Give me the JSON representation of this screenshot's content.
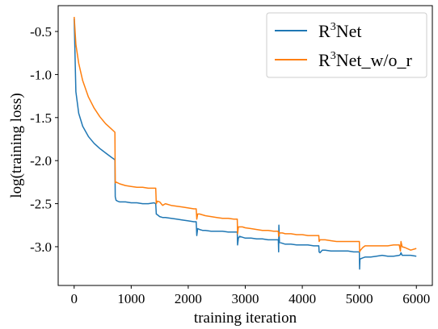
{
  "chart_data": {
    "type": "line",
    "title": "",
    "xlabel": "training iteration",
    "ylabel": "log(training loss)",
    "xlim": [
      -280,
      6280
    ],
    "ylim": [
      -3.45,
      -0.2
    ],
    "xticks": [
      0,
      1000,
      2000,
      3000,
      4000,
      5000,
      6000
    ],
    "xtick_labels": [
      "0",
      "1000",
      "2000",
      "3000",
      "4000",
      "5000",
      "6000"
    ],
    "yticks": [
      -0.5,
      -1.0,
      -1.5,
      -2.0,
      -2.5,
      -3.0
    ],
    "ytick_labels": [
      "-0.5",
      "-1.0",
      "-1.5",
      "-2.0",
      "-2.5",
      "-3.0"
    ],
    "grid": false,
    "legend_position": "top-right",
    "series": [
      {
        "name": "R³Net",
        "legend_base": "R",
        "legend_sup": "3",
        "legend_rest": "Net",
        "color": "#1f77b4",
        "x": [
          0,
          30,
          80,
          150,
          250,
          350,
          450,
          550,
          650,
          715,
          720,
          735,
          760,
          800,
          900,
          1000,
          1100,
          1200,
          1300,
          1400,
          1430,
          1440,
          1460,
          1500,
          1550,
          1600,
          1700,
          1800,
          1900,
          2000,
          2100,
          2140,
          2150,
          2165,
          2200,
          2250,
          2300,
          2400,
          2500,
          2600,
          2700,
          2800,
          2860,
          2865,
          2880,
          2900,
          2950,
          3000,
          3100,
          3200,
          3300,
          3400,
          3500,
          3580,
          3585,
          3590,
          3600,
          3650,
          3700,
          3800,
          3900,
          4000,
          4100,
          4200,
          4290,
          4295,
          4310,
          4350,
          4400,
          4500,
          4600,
          4700,
          4800,
          4900,
          5000,
          5005,
          5010,
          5020,
          5060,
          5100,
          5200,
          5300,
          5400,
          5500,
          5600,
          5700,
          5720,
          5730,
          5750,
          5800,
          5900,
          6000
        ],
        "y": [
          -0.35,
          -1.2,
          -1.45,
          -1.6,
          -1.72,
          -1.8,
          -1.86,
          -1.91,
          -1.96,
          -1.99,
          -2.42,
          -2.46,
          -2.47,
          -2.48,
          -2.48,
          -2.49,
          -2.49,
          -2.5,
          -2.5,
          -2.49,
          -2.5,
          -2.62,
          -2.63,
          -2.65,
          -2.66,
          -2.66,
          -2.67,
          -2.68,
          -2.69,
          -2.7,
          -2.71,
          -2.71,
          -2.87,
          -2.79,
          -2.8,
          -2.81,
          -2.81,
          -2.82,
          -2.82,
          -2.82,
          -2.83,
          -2.83,
          -2.83,
          -2.98,
          -2.9,
          -2.88,
          -2.89,
          -2.9,
          -2.9,
          -2.91,
          -2.91,
          -2.92,
          -2.92,
          -2.92,
          -3.06,
          -2.75,
          -2.95,
          -2.96,
          -2.97,
          -2.97,
          -2.98,
          -2.98,
          -2.98,
          -2.99,
          -2.99,
          -3.06,
          -3.07,
          -3.04,
          -3.04,
          -3.05,
          -3.05,
          -3.05,
          -3.05,
          -3.06,
          -3.06,
          -3.26,
          -3.15,
          -3.14,
          -3.13,
          -3.12,
          -3.12,
          -3.11,
          -3.1,
          -3.11,
          -3.11,
          -3.1,
          -3.09,
          -3.07,
          -3.1,
          -3.1,
          -3.1,
          -3.11
        ]
      },
      {
        "name": "R³Net_w/o_r",
        "legend_base": "R",
        "legend_sup": "3",
        "legend_rest": "Net_w/o_r",
        "color": "#ff7f0e",
        "x": [
          0,
          30,
          80,
          150,
          250,
          350,
          450,
          550,
          650,
          715,
          720,
          740,
          800,
          900,
          1000,
          1100,
          1200,
          1300,
          1400,
          1430,
          1440,
          1460,
          1500,
          1550,
          1600,
          1700,
          1800,
          1900,
          2000,
          2100,
          2140,
          2150,
          2165,
          2200,
          2300,
          2400,
          2500,
          2600,
          2700,
          2800,
          2860,
          2865,
          2880,
          2950,
          3000,
          3100,
          3200,
          3300,
          3400,
          3500,
          3580,
          3585,
          3600,
          3650,
          3700,
          3800,
          3900,
          4000,
          4100,
          4200,
          4290,
          4295,
          4310,
          4400,
          4500,
          4600,
          4700,
          4800,
          4900,
          5000,
          5005,
          5020,
          5060,
          5100,
          5200,
          5300,
          5400,
          5500,
          5600,
          5700,
          5720,
          5730,
          5750,
          5800,
          5900,
          6000
        ],
        "y": [
          -0.33,
          -0.65,
          -0.87,
          -1.07,
          -1.26,
          -1.39,
          -1.49,
          -1.57,
          -1.63,
          -1.67,
          -2.26,
          -2.25,
          -2.27,
          -2.29,
          -2.3,
          -2.31,
          -2.31,
          -2.32,
          -2.32,
          -2.32,
          -2.5,
          -2.47,
          -2.48,
          -2.52,
          -2.5,
          -2.52,
          -2.53,
          -2.54,
          -2.55,
          -2.56,
          -2.56,
          -2.68,
          -2.62,
          -2.62,
          -2.64,
          -2.65,
          -2.66,
          -2.67,
          -2.67,
          -2.68,
          -2.68,
          -2.85,
          -2.77,
          -2.77,
          -2.78,
          -2.79,
          -2.8,
          -2.81,
          -2.81,
          -2.82,
          -2.82,
          -2.88,
          -2.84,
          -2.84,
          -2.85,
          -2.85,
          -2.86,
          -2.86,
          -2.87,
          -2.87,
          -2.87,
          -2.94,
          -2.92,
          -2.92,
          -2.93,
          -2.94,
          -2.94,
          -2.94,
          -2.94,
          -2.94,
          -3.06,
          -3.04,
          -3.01,
          -2.99,
          -2.99,
          -2.99,
          -2.99,
          -2.99,
          -2.98,
          -2.98,
          -3.05,
          -2.94,
          -3.0,
          -3.01,
          -3.04,
          -3.02
        ]
      }
    ]
  }
}
